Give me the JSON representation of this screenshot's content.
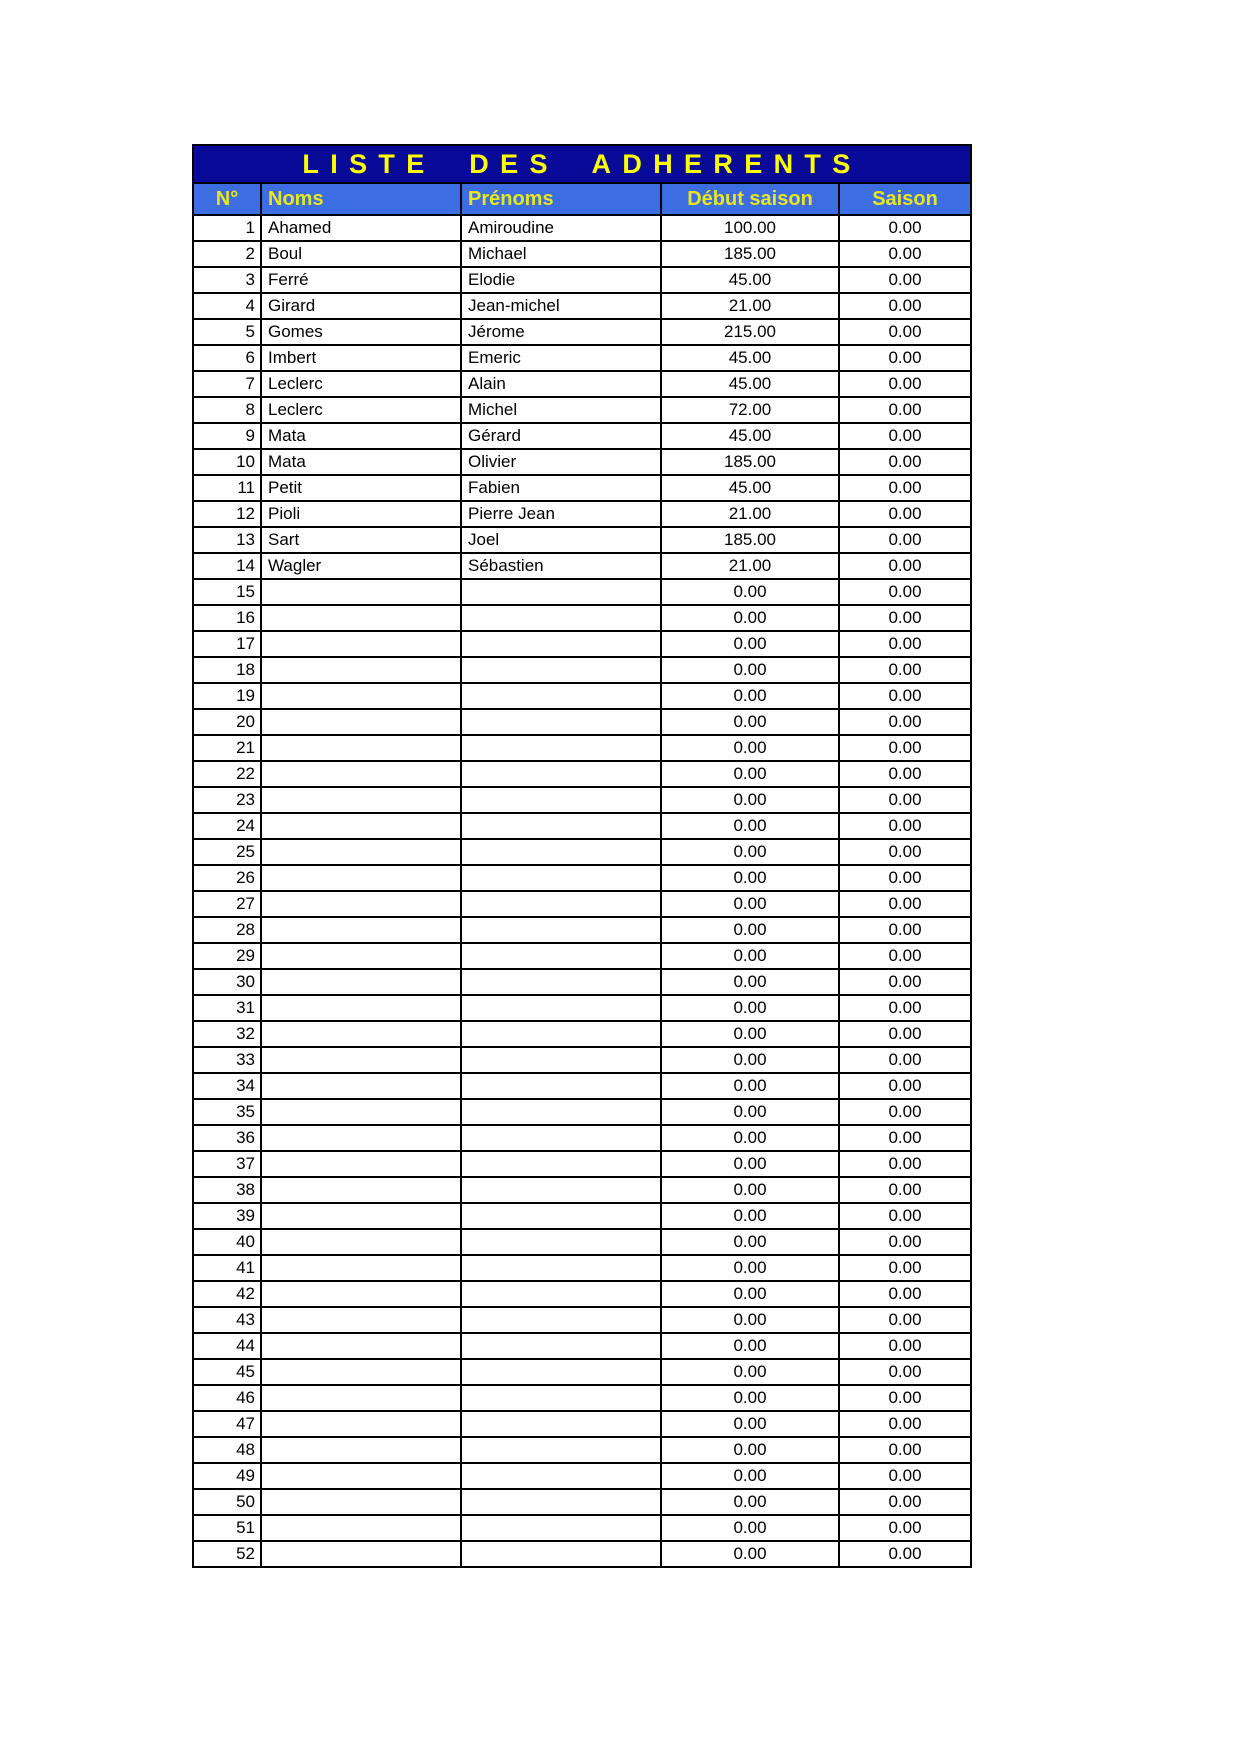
{
  "page_title": "LISTE DES ADHERENTS",
  "colors": {
    "title_bg": "#0A0A99",
    "title_text": "#FFFF00",
    "header_bg": "#3D6EE1",
    "header_text": "#E9E51E",
    "border": "#000000"
  },
  "table": {
    "columns": [
      "N°",
      "Noms",
      "Prénoms",
      "Début saison",
      "Saison"
    ],
    "rows": [
      {
        "n": "1",
        "nom": "Ahamed",
        "prenom": "Amiroudine",
        "debut": "100.00",
        "saison": "0.00"
      },
      {
        "n": "2",
        "nom": "Boul",
        "prenom": "Michael",
        "debut": "185.00",
        "saison": "0.00"
      },
      {
        "n": "3",
        "nom": "Ferré",
        "prenom": "Elodie",
        "debut": "45.00",
        "saison": "0.00"
      },
      {
        "n": "4",
        "nom": "Girard",
        "prenom": "Jean-michel",
        "debut": "21.00",
        "saison": "0.00"
      },
      {
        "n": "5",
        "nom": "Gomes",
        "prenom": "Jérome",
        "debut": "215.00",
        "saison": "0.00"
      },
      {
        "n": "6",
        "nom": "Imbert",
        "prenom": "Emeric",
        "debut": "45.00",
        "saison": "0.00"
      },
      {
        "n": "7",
        "nom": "Leclerc",
        "prenom": "Alain",
        "debut": "45.00",
        "saison": "0.00"
      },
      {
        "n": "8",
        "nom": "Leclerc",
        "prenom": "Michel",
        "debut": "72.00",
        "saison": "0.00"
      },
      {
        "n": "9",
        "nom": "Mata",
        "prenom": "Gérard",
        "debut": "45.00",
        "saison": "0.00"
      },
      {
        "n": "10",
        "nom": "Mata",
        "prenom": "Olivier",
        "debut": "185.00",
        "saison": "0.00"
      },
      {
        "n": "11",
        "nom": "Petit",
        "prenom": "Fabien",
        "debut": "45.00",
        "saison": "0.00"
      },
      {
        "n": "12",
        "nom": "Pioli",
        "prenom": "Pierre Jean",
        "debut": "21.00",
        "saison": "0.00"
      },
      {
        "n": "13",
        "nom": "Sart",
        "prenom": "Joel",
        "debut": "185.00",
        "saison": "0.00"
      },
      {
        "n": "14",
        "nom": "Wagler",
        "prenom": "Sébastien",
        "debut": "21.00",
        "saison": "0.00"
      },
      {
        "n": "15",
        "nom": "",
        "prenom": "",
        "debut": "0.00",
        "saison": "0.00"
      },
      {
        "n": "16",
        "nom": "",
        "prenom": "",
        "debut": "0.00",
        "saison": "0.00"
      },
      {
        "n": "17",
        "nom": "",
        "prenom": "",
        "debut": "0.00",
        "saison": "0.00"
      },
      {
        "n": "18",
        "nom": "",
        "prenom": "",
        "debut": "0.00",
        "saison": "0.00"
      },
      {
        "n": "19",
        "nom": "",
        "prenom": "",
        "debut": "0.00",
        "saison": "0.00"
      },
      {
        "n": "20",
        "nom": "",
        "prenom": "",
        "debut": "0.00",
        "saison": "0.00"
      },
      {
        "n": "21",
        "nom": "",
        "prenom": "",
        "debut": "0.00",
        "saison": "0.00"
      },
      {
        "n": "22",
        "nom": "",
        "prenom": "",
        "debut": "0.00",
        "saison": "0.00"
      },
      {
        "n": "23",
        "nom": "",
        "prenom": "",
        "debut": "0.00",
        "saison": "0.00"
      },
      {
        "n": "24",
        "nom": "",
        "prenom": "",
        "debut": "0.00",
        "saison": "0.00"
      },
      {
        "n": "25",
        "nom": "",
        "prenom": "",
        "debut": "0.00",
        "saison": "0.00"
      },
      {
        "n": "26",
        "nom": "",
        "prenom": "",
        "debut": "0.00",
        "saison": "0.00"
      },
      {
        "n": "27",
        "nom": "",
        "prenom": "",
        "debut": "0.00",
        "saison": "0.00"
      },
      {
        "n": "28",
        "nom": "",
        "prenom": "",
        "debut": "0.00",
        "saison": "0.00"
      },
      {
        "n": "29",
        "nom": "",
        "prenom": "",
        "debut": "0.00",
        "saison": "0.00"
      },
      {
        "n": "30",
        "nom": "",
        "prenom": "",
        "debut": "0.00",
        "saison": "0.00"
      },
      {
        "n": "31",
        "nom": "",
        "prenom": "",
        "debut": "0.00",
        "saison": "0.00"
      },
      {
        "n": "32",
        "nom": "",
        "prenom": "",
        "debut": "0.00",
        "saison": "0.00"
      },
      {
        "n": "33",
        "nom": "",
        "prenom": "",
        "debut": "0.00",
        "saison": "0.00"
      },
      {
        "n": "34",
        "nom": "",
        "prenom": "",
        "debut": "0.00",
        "saison": "0.00"
      },
      {
        "n": "35",
        "nom": "",
        "prenom": "",
        "debut": "0.00",
        "saison": "0.00"
      },
      {
        "n": "36",
        "nom": "",
        "prenom": "",
        "debut": "0.00",
        "saison": "0.00"
      },
      {
        "n": "37",
        "nom": "",
        "prenom": "",
        "debut": "0.00",
        "saison": "0.00"
      },
      {
        "n": "38",
        "nom": "",
        "prenom": "",
        "debut": "0.00",
        "saison": "0.00"
      },
      {
        "n": "39",
        "nom": "",
        "prenom": "",
        "debut": "0.00",
        "saison": "0.00"
      },
      {
        "n": "40",
        "nom": "",
        "prenom": "",
        "debut": "0.00",
        "saison": "0.00"
      },
      {
        "n": "41",
        "nom": "",
        "prenom": "",
        "debut": "0.00",
        "saison": "0.00"
      },
      {
        "n": "42",
        "nom": "",
        "prenom": "",
        "debut": "0.00",
        "saison": "0.00"
      },
      {
        "n": "43",
        "nom": "",
        "prenom": "",
        "debut": "0.00",
        "saison": "0.00"
      },
      {
        "n": "44",
        "nom": "",
        "prenom": "",
        "debut": "0.00",
        "saison": "0.00"
      },
      {
        "n": "45",
        "nom": "",
        "prenom": "",
        "debut": "0.00",
        "saison": "0.00"
      },
      {
        "n": "46",
        "nom": "",
        "prenom": "",
        "debut": "0.00",
        "saison": "0.00"
      },
      {
        "n": "47",
        "nom": "",
        "prenom": "",
        "debut": "0.00",
        "saison": "0.00"
      },
      {
        "n": "48",
        "nom": "",
        "prenom": "",
        "debut": "0.00",
        "saison": "0.00"
      },
      {
        "n": "49",
        "nom": "",
        "prenom": "",
        "debut": "0.00",
        "saison": "0.00"
      },
      {
        "n": "50",
        "nom": "",
        "prenom": "",
        "debut": "0.00",
        "saison": "0.00"
      },
      {
        "n": "51",
        "nom": "",
        "prenom": "",
        "debut": "0.00",
        "saison": "0.00"
      },
      {
        "n": "52",
        "nom": "",
        "prenom": "",
        "debut": "0.00",
        "saison": "0.00"
      }
    ]
  }
}
